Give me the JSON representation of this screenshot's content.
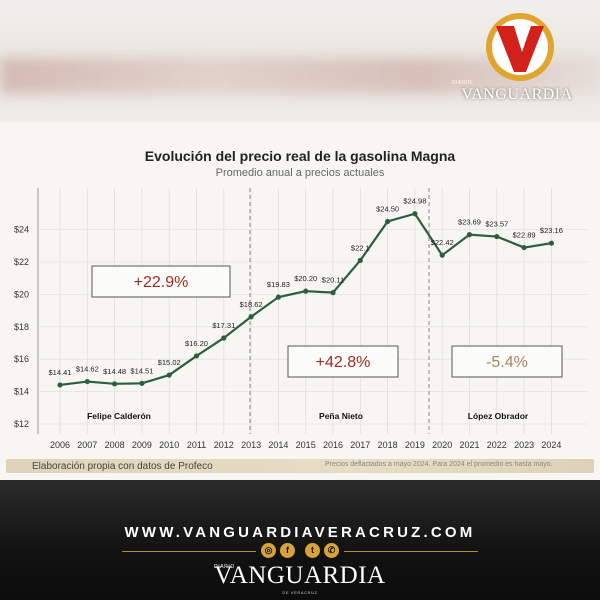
{
  "header": {
    "logo_letter": "V",
    "logo_diario": "DIARIO",
    "logo_name": "VANGUARDIA",
    "colors": {
      "logo_red": "#d1211a",
      "logo_gold": "#e0a531"
    }
  },
  "chart_data": {
    "type": "line",
    "title": "Evolución del precio real de la gasolina Magna",
    "subtitle": "Promedio anual a precios actuales",
    "xlabel": "",
    "ylabel": "",
    "ylim": [
      12,
      26
    ],
    "grid": true,
    "y_ticks": [
      "$12",
      "$14",
      "$16",
      "$18",
      "$20",
      "$22",
      "$24"
    ],
    "categories": [
      "2006",
      "2007",
      "2008",
      "2009",
      "2010",
      "2011",
      "2012",
      "2013",
      "2014",
      "2015",
      "2016",
      "2017",
      "2018",
      "2019",
      "2020",
      "2021",
      "2022",
      "2023",
      "2024"
    ],
    "series": [
      {
        "values": [
          14.41,
          14.62,
          14.48,
          14.51,
          15.02,
          16.2,
          17.31,
          18.62,
          19.83,
          20.2,
          20.11,
          22.1,
          24.5,
          24.98,
          22.42,
          23.69,
          23.57,
          22.89,
          23.16
        ],
        "labels": [
          "$14.41",
          "$14.62",
          "$14.48",
          "$14.51",
          "$15.02",
          "$16.20",
          "$17.31",
          "$18.62",
          "$19.83",
          "$20.20",
          "$20.11",
          "$22.1",
          "$24.50",
          "$24.98",
          "$22.42",
          "$23.69",
          "$23.57",
          "$22.89",
          "$23.16"
        ],
        "color": "#2d5e40"
      }
    ],
    "periods": [
      {
        "name": "Felipe Calderón",
        "change": "+22.9%",
        "change_color": "#a12a22"
      },
      {
        "name": "Peña Nieto",
        "change": "+42.8%",
        "change_color": "#a12a22"
      },
      {
        "name": "López Obrador",
        "change": "-5.4%",
        "change_color": "#a7855f"
      }
    ],
    "source": "Elaboración propia con datos de Profeco",
    "note": "Precios deflactados a mayo 2024. Para 2024 el promedio es hasta mayo."
  },
  "footer": {
    "website": "WWW.VANGUARDIAVERACRUZ.COM",
    "social_icons": [
      "instagram-icon",
      "facebook-icon",
      "twitter-icon",
      "whatsapp-icon"
    ],
    "social_glyphs": [
      "◎",
      "f",
      "t",
      "✆"
    ],
    "diario": "DIARIO",
    "brand": "VANGUARDIA",
    "sub": "DE VERACRUZ"
  }
}
